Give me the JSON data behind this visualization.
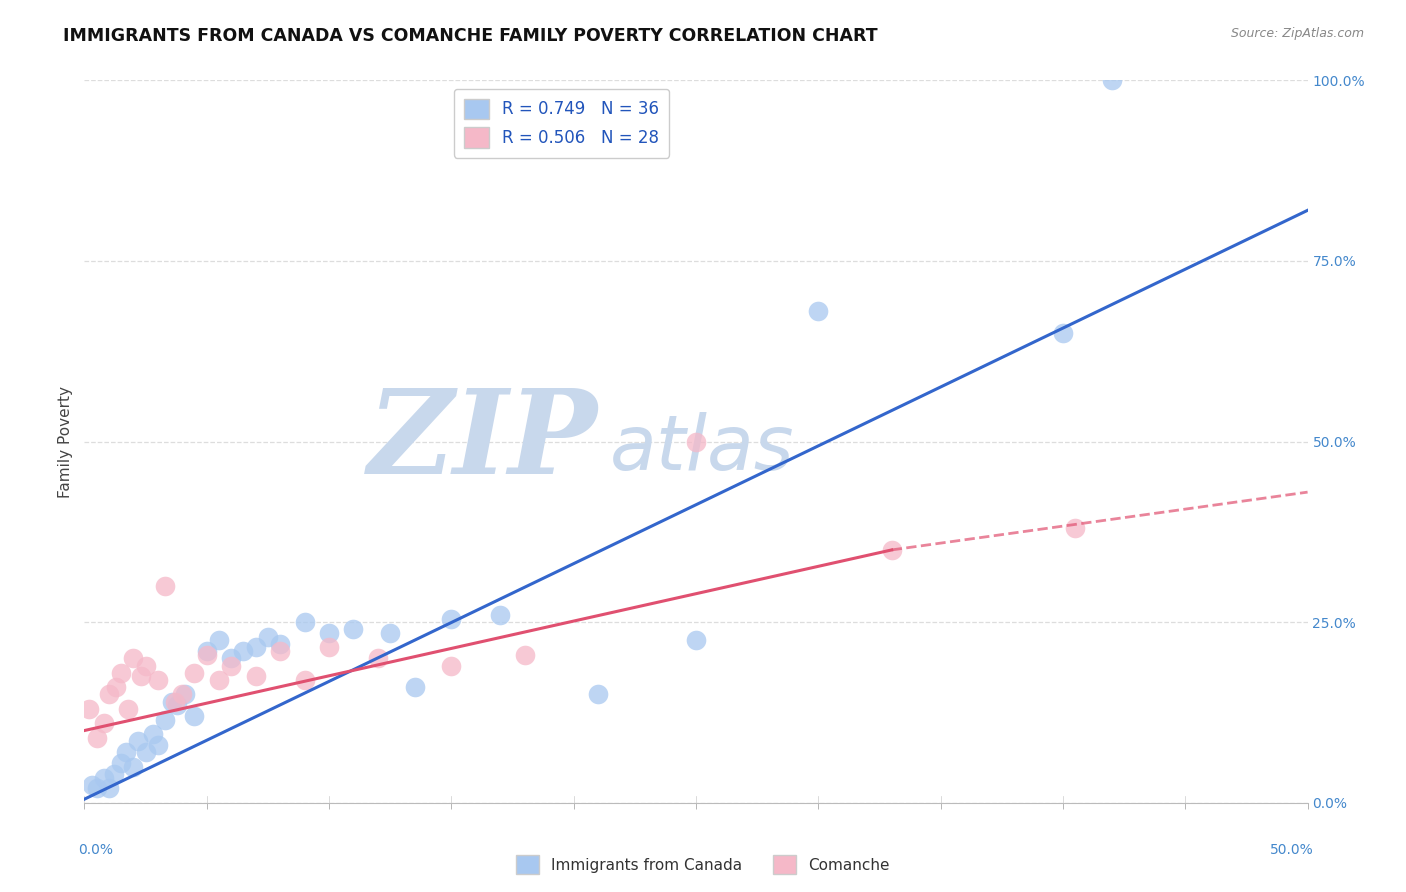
{
  "title": "IMMIGRANTS FROM CANADA VS COMANCHE FAMILY POVERTY CORRELATION CHART",
  "source": "Source: ZipAtlas.com",
  "ylabel": "Family Poverty",
  "ytick_labels": [
    "0.0%",
    "25.0%",
    "50.0%",
    "75.0%",
    "100.0%"
  ],
  "ytick_values": [
    0,
    25,
    50,
    75,
    100
  ],
  "xlim": [
    0,
    50
  ],
  "ylim": [
    0,
    100
  ],
  "legend_entries": [
    {
      "label": "R = 0.749   N = 36",
      "color": "#a8c8f0"
    },
    {
      "label": "R = 0.506   N = 28",
      "color": "#f5b8c8"
    }
  ],
  "canada_color": "#a8c8f0",
  "comanche_color": "#f5b8c8",
  "canada_line_color": "#3366cc",
  "comanche_line_color": "#e05070",
  "watermark_zip": "ZIP",
  "watermark_atlas": "atlas",
  "watermark_color_zip": "#c8d8ec",
  "watermark_color_atlas": "#c8d8ec",
  "background_color": "#ffffff",
  "grid_color": "#dddddd",
  "canada_points": [
    [
      0.3,
      2.5
    ],
    [
      0.5,
      2.0
    ],
    [
      0.8,
      3.5
    ],
    [
      1.0,
      2.0
    ],
    [
      1.2,
      4.0
    ],
    [
      1.5,
      5.5
    ],
    [
      1.7,
      7.0
    ],
    [
      2.0,
      5.0
    ],
    [
      2.2,
      8.5
    ],
    [
      2.5,
      7.0
    ],
    [
      2.8,
      9.5
    ],
    [
      3.0,
      8.0
    ],
    [
      3.3,
      11.5
    ],
    [
      3.6,
      14.0
    ],
    [
      3.8,
      13.5
    ],
    [
      4.1,
      15.0
    ],
    [
      4.5,
      12.0
    ],
    [
      5.0,
      21.0
    ],
    [
      5.5,
      22.5
    ],
    [
      6.0,
      20.0
    ],
    [
      6.5,
      21.0
    ],
    [
      7.0,
      21.5
    ],
    [
      7.5,
      23.0
    ],
    [
      8.0,
      22.0
    ],
    [
      9.0,
      25.0
    ],
    [
      10.0,
      23.5
    ],
    [
      11.0,
      24.0
    ],
    [
      12.5,
      23.5
    ],
    [
      13.5,
      16.0
    ],
    [
      15.0,
      25.5
    ],
    [
      17.0,
      26.0
    ],
    [
      21.0,
      15.0
    ],
    [
      25.0,
      22.5
    ],
    [
      30.0,
      68.0
    ],
    [
      40.0,
      65.0
    ],
    [
      42.0,
      100.0
    ]
  ],
  "comanche_points": [
    [
      0.2,
      13.0
    ],
    [
      0.5,
      9.0
    ],
    [
      0.8,
      11.0
    ],
    [
      1.0,
      15.0
    ],
    [
      1.3,
      16.0
    ],
    [
      1.5,
      18.0
    ],
    [
      1.8,
      13.0
    ],
    [
      2.0,
      20.0
    ],
    [
      2.3,
      17.5
    ],
    [
      2.5,
      19.0
    ],
    [
      3.0,
      17.0
    ],
    [
      3.3,
      30.0
    ],
    [
      3.7,
      14.0
    ],
    [
      4.0,
      15.0
    ],
    [
      4.5,
      18.0
    ],
    [
      5.0,
      20.5
    ],
    [
      5.5,
      17.0
    ],
    [
      6.0,
      19.0
    ],
    [
      7.0,
      17.5
    ],
    [
      8.0,
      21.0
    ],
    [
      9.0,
      17.0
    ],
    [
      10.0,
      21.5
    ],
    [
      12.0,
      20.0
    ],
    [
      15.0,
      19.0
    ],
    [
      18.0,
      20.5
    ],
    [
      25.0,
      50.0
    ],
    [
      33.0,
      35.0
    ],
    [
      40.5,
      38.0
    ]
  ],
  "canada_line": [
    [
      0,
      0.5
    ],
    [
      50,
      82.0
    ]
  ],
  "comanche_line_solid": [
    [
      0,
      10.0
    ],
    [
      33,
      35.0
    ]
  ],
  "comanche_line_dashed": [
    [
      33,
      35.0
    ],
    [
      50,
      43.0
    ]
  ]
}
